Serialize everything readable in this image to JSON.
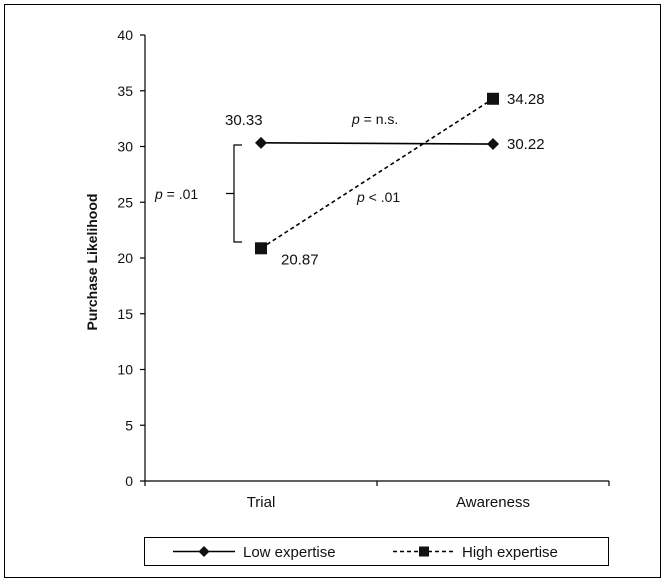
{
  "chart_data": {
    "type": "line",
    "categories": [
      "Trial",
      "Awareness"
    ],
    "ylabel": "Purchase Likelihood",
    "ylim": [
      0,
      40
    ],
    "yticks": [
      0,
      5,
      10,
      15,
      20,
      25,
      30,
      35,
      40
    ],
    "grid": false,
    "legend_position": "bottom",
    "series": [
      {
        "name": "Low expertise",
        "values": [
          30.33,
          30.22
        ],
        "labels": [
          "30.33",
          "30.22"
        ],
        "marker": "diamond",
        "line": "solid"
      },
      {
        "name": "High expertise",
        "values": [
          20.87,
          34.28
        ],
        "labels": [
          "20.87",
          "34.28"
        ],
        "marker": "square",
        "line": "dashed"
      }
    ],
    "annotations": {
      "bracket": {
        "prefix": "p",
        "suffix": " = .01"
      },
      "low_line": {
        "prefix": "p",
        "suffix": " = n.s."
      },
      "high_line": {
        "prefix": "p",
        "suffix": " < .01"
      }
    }
  }
}
